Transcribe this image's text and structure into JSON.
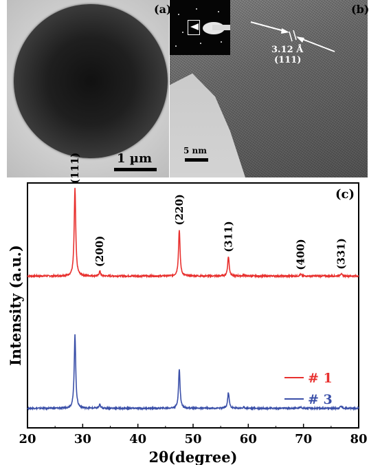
{
  "panel_a": {
    "label": "(a)",
    "scale_bar": "1 µm"
  },
  "panel_b": {
    "label": "(b)",
    "scale_bar": "5 nm",
    "spacing": "3.12 Å",
    "plane": "(111)"
  },
  "panel_c": {
    "label": "(c)"
  },
  "chart_data": {
    "type": "line",
    "xlabel": "2θ(degree)",
    "ylabel": "Intensity (a.u.)",
    "xlim": [
      20,
      80
    ],
    "xticks": [
      "20",
      "30",
      "40",
      "50",
      "60",
      "70",
      "80"
    ],
    "grid": false,
    "legend_position": "right",
    "peak_labels": [
      {
        "text": "(111)",
        "x": 28.6
      },
      {
        "text": "(200)",
        "x": 33.1
      },
      {
        "text": "(220)",
        "x": 47.5
      },
      {
        "text": "(311)",
        "x": 56.4
      },
      {
        "text": "(400)",
        "x": 69.5
      },
      {
        "text": "(331)",
        "x": 76.8
      }
    ],
    "series": [
      {
        "name": "# 1",
        "color": "#e8302e",
        "baseline": 0.62,
        "peaks": [
          {
            "x": 28.6,
            "height": 0.36,
            "width": 0.33
          },
          {
            "x": 33.1,
            "height": 0.02,
            "width": 0.3
          },
          {
            "x": 47.5,
            "height": 0.19,
            "width": 0.33
          },
          {
            "x": 56.4,
            "height": 0.08,
            "width": 0.33
          },
          {
            "x": 59.2,
            "height": 0.005,
            "width": 0.3
          },
          {
            "x": 69.5,
            "height": 0.007,
            "width": 0.35
          },
          {
            "x": 76.8,
            "height": 0.01,
            "width": 0.35
          }
        ]
      },
      {
        "name": "# 3",
        "color": "#3a4fa8",
        "baseline": 0.08,
        "peaks": [
          {
            "x": 28.6,
            "height": 0.3,
            "width": 0.33
          },
          {
            "x": 33.1,
            "height": 0.015,
            "width": 0.3
          },
          {
            "x": 47.5,
            "height": 0.16,
            "width": 0.33
          },
          {
            "x": 56.4,
            "height": 0.065,
            "width": 0.33
          },
          {
            "x": 59.2,
            "height": 0.004,
            "width": 0.3
          },
          {
            "x": 69.5,
            "height": 0.006,
            "width": 0.35
          },
          {
            "x": 76.8,
            "height": 0.009,
            "width": 0.35
          }
        ]
      }
    ]
  }
}
